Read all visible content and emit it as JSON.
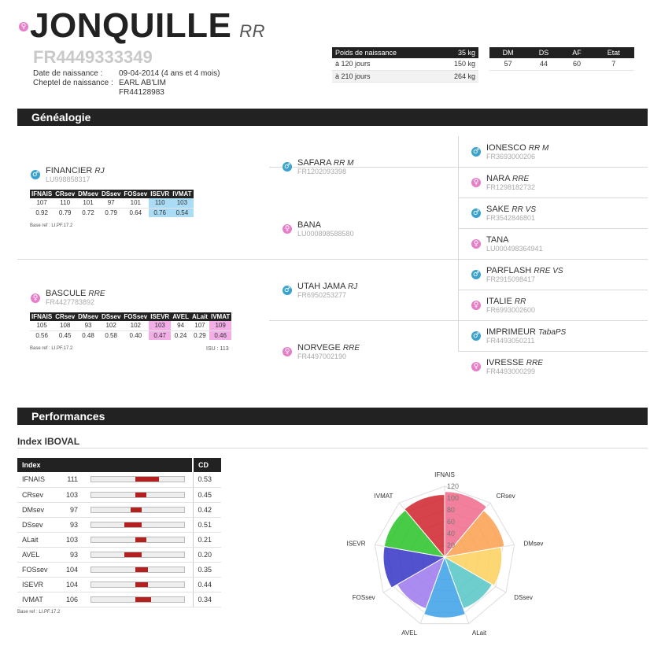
{
  "animal": {
    "sex_icon": "female-icon",
    "name": "JONQUILLE",
    "race": "RR",
    "registration": "FR4449333349",
    "birth_date_label": "Date de naissance :",
    "birth_date_value": "09-04-2014 (4 ans et 4 mois)",
    "herd_label": "Cheptel de naissance :",
    "herd_name": "EARL AB'LIM",
    "herd_id": "FR44128983"
  },
  "weights": {
    "header_label": "Poids de naissance",
    "header_value": "35 kg",
    "rows": [
      {
        "label": "à 120 jours",
        "value": "150 kg"
      },
      {
        "label": "à 210 jours",
        "value": "264 kg"
      }
    ]
  },
  "morpho": {
    "headers": [
      "DM",
      "DS",
      "AF",
      "Etat"
    ],
    "values": [
      "57",
      "44",
      "60",
      "7"
    ]
  },
  "sections": {
    "genealogy": "Généalogie",
    "performances": "Performances"
  },
  "genealogy": {
    "father": {
      "name": "FINANCIER",
      "race": "RJ",
      "reg": "LU998858317",
      "sex": "male",
      "index_headers": [
        "IFNAIS",
        "CRsev",
        "DMsev",
        "DSsev",
        "FOSsev",
        "ISEVR",
        "IVMAT"
      ],
      "index_values": [
        "107",
        "110",
        "101",
        "97",
        "101",
        "110",
        "103"
      ],
      "index_cd": [
        "0.92",
        "0.79",
        "0.72",
        "0.79",
        "0.64",
        "0.76",
        "0.54"
      ],
      "base_ref": "Base ref : LI.PF.17.2"
    },
    "mother": {
      "name": "BASCULE",
      "race": "RRE",
      "reg": "FR4427783892",
      "sex": "female",
      "index_headers": [
        "IFNAIS",
        "CRsev",
        "DMsev",
        "DSsev",
        "FOSsev",
        "ISEVR",
        "AVEL",
        "ALait",
        "IVMAT"
      ],
      "index_values": [
        "105",
        "108",
        "93",
        "102",
        "102",
        "103",
        "94",
        "107",
        "109"
      ],
      "index_cd": [
        "0.56",
        "0.45",
        "0.48",
        "0.58",
        "0.40",
        "0.47",
        "0.24",
        "0.29",
        "0.46"
      ],
      "base_ref": "Base ref : LI.PF.17.2",
      "isu": "ISU : 113"
    },
    "grandparents": [
      {
        "name": "SAFARA",
        "race": "RR M",
        "reg": "FR1202093398",
        "sex": "male"
      },
      {
        "name": "BANA",
        "race": "",
        "reg": "LU000898588580",
        "sex": "female"
      },
      {
        "name": "UTAH JAMA",
        "race": "RJ",
        "reg": "FR6950253277",
        "sex": "male"
      },
      {
        "name": "NORVEGE",
        "race": "RRE",
        "reg": "FR4497002190",
        "sex": "female"
      }
    ],
    "great_grandparents": [
      {
        "name": "IONESCO",
        "race": "RR M",
        "reg": "FR3693000206",
        "sex": "male"
      },
      {
        "name": "NARA",
        "race": "RRE",
        "reg": "FR1298182732",
        "sex": "female"
      },
      {
        "name": "SAKE",
        "race": "RR VS",
        "reg": "FR3542846801",
        "sex": "male"
      },
      {
        "name": "TANA",
        "race": "",
        "reg": "LU000498364941",
        "sex": "female"
      },
      {
        "name": "PARFLASH",
        "race": "RRE VS",
        "reg": "FR2915098417",
        "sex": "male"
      },
      {
        "name": "ITALIE",
        "race": "RR",
        "reg": "FR6993002600",
        "sex": "female"
      },
      {
        "name": "IMPRIMEUR",
        "race": "TabaPS",
        "reg": "FR4493050211",
        "sex": "male"
      },
      {
        "name": "IVRESSE",
        "race": "RRE",
        "reg": "FR4493000299",
        "sex": "female"
      }
    ]
  },
  "iboval": {
    "title": "Index IBOVAL",
    "col_index": "Index",
    "col_cd": "CD",
    "rows": [
      {
        "label": "IFNAIS",
        "value": "111",
        "cd": "0.53"
      },
      {
        "label": "CRsev",
        "value": "103",
        "cd": "0.45"
      },
      {
        "label": "DMsev",
        "value": "97",
        "cd": "0.42"
      },
      {
        "label": "DSsev",
        "value": "93",
        "cd": "0.51"
      },
      {
        "label": "ALait",
        "value": "103",
        "cd": "0.21"
      },
      {
        "label": "AVEL",
        "value": "93",
        "cd": "0.20"
      },
      {
        "label": "FOSsev",
        "value": "104",
        "cd": "0.35"
      },
      {
        "label": "ISEVR",
        "value": "104",
        "cd": "0.44"
      },
      {
        "label": "IVMAT",
        "value": "106",
        "cd": "0.34"
      }
    ],
    "base_ref": "Base ref : LI.PF.17.2"
  },
  "chart_data": {
    "type": "polar_area",
    "categories": [
      "IFNAIS",
      "CRsev",
      "DMsev",
      "DSsev",
      "ALait",
      "AVEL",
      "FOSsev",
      "ISEVR",
      "IVMAT"
    ],
    "values": [
      111,
      103,
      97,
      93,
      103,
      93,
      104,
      104,
      106
    ],
    "r_range": [
      0,
      120
    ],
    "r_ticks": [
      "20",
      "40",
      "60",
      "80",
      "100",
      "120"
    ],
    "colors": [
      "#f0688a",
      "#fb9f4d",
      "#fdd05a",
      "#55c5c5",
      "#3aa0e8",
      "#9b78ef",
      "#3434c6",
      "#28c328",
      "#d0222a"
    ],
    "grid": true,
    "legend": "none"
  }
}
